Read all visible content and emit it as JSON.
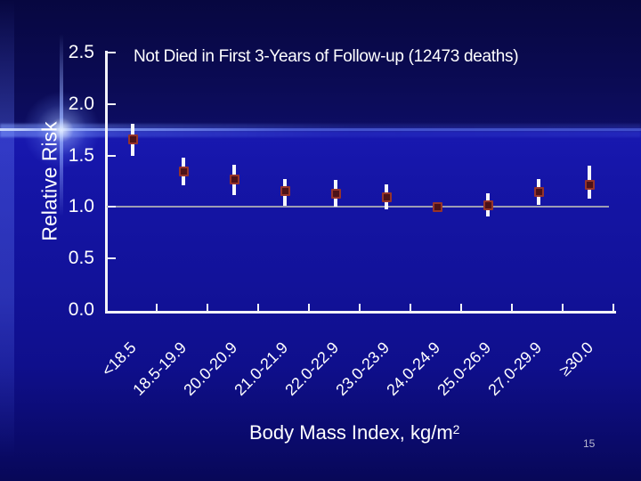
{
  "slide": {
    "page_number": "15"
  },
  "chart_data": {
    "type": "scatter",
    "marker": "square-with-error-bars",
    "title": "Not Died in First 3-Years of Follow-up (12473 deaths)",
    "xlabel": "Body Mass Index, kg/m",
    "xlabel_superscript": "2",
    "ylabel": "Relative Risk",
    "categories": [
      "<18.5",
      "18.5-19.9",
      "20.0-20.9",
      "21.0-21.9",
      "22.0-22.9",
      "23.0-23.9",
      "24.0-24.9",
      "25.0-26.9",
      "27.0-29.9",
      "≥30.0"
    ],
    "series": [
      {
        "values": [
          1.66,
          1.35,
          1.27,
          1.16,
          1.13,
          1.1,
          1.0,
          1.02,
          1.15,
          1.22
        ],
        "ci_low": [
          1.5,
          1.21,
          1.12,
          1.01,
          1.0,
          0.98,
          1.0,
          0.91,
          1.02,
          1.08
        ],
        "ci_high": [
          1.81,
          1.48,
          1.41,
          1.27,
          1.26,
          1.22,
          1.0,
          1.13,
          1.27,
          1.4
        ]
      }
    ],
    "ylim": [
      0,
      2.5
    ],
    "yticks": [
      0.0,
      0.5,
      1.0,
      1.5,
      2.0,
      2.5
    ],
    "ytick_labels": [
      "0.0",
      "0.5",
      "1.0",
      "1.5",
      "2.0",
      "2.5"
    ],
    "reference_line_y": 1.0,
    "grid": false,
    "legend": false
  },
  "colors": {
    "background_top": "#0b0b55",
    "background_mid": "#1515a6",
    "background_bottom": "#080858",
    "axis": "#f2f2f8",
    "reference_line": "#9c9cb4",
    "point_fill": "#4c1219",
    "point_border": "#96342b",
    "error_bar": "#f6f6fa",
    "text": "#ffffff",
    "page_number": "#b9b9cf",
    "flare": "#96aeff"
  }
}
